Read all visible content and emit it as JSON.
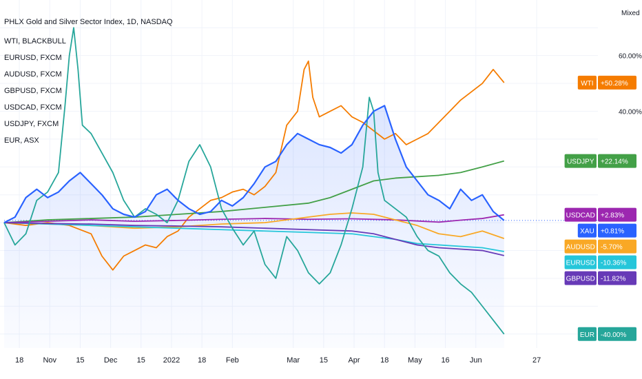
{
  "chart_data": {
    "type": "line",
    "title": "PHLX Gold and Silver Sector Index, 1D, NASDAQ",
    "legend_entries": [
      "WTI, BLACKBULL",
      "EURUSD, FXCM",
      "AUDUSD, FXCM",
      "GBPUSD, FXCM",
      "USDCAD, FXCM",
      "USDJPY, FXCM",
      "EUR, ASX"
    ],
    "scale_mode": "Mixed",
    "y_tick_labels": [
      {
        "value": 60,
        "label": "60.00%"
      },
      {
        "value": 40,
        "label": "40.00%"
      }
    ],
    "ylim": [
      -45,
      75
    ],
    "xlim": [
      0,
      270
    ],
    "x_tick_labels": [
      {
        "x": 7,
        "label": "18"
      },
      {
        "x": 21,
        "label": "Nov"
      },
      {
        "x": 35,
        "label": "15"
      },
      {
        "x": 49,
        "label": "Dec"
      },
      {
        "x": 63,
        "label": "15"
      },
      {
        "x": 77,
        "label": "2022"
      },
      {
        "x": 91,
        "label": "18"
      },
      {
        "x": 105,
        "label": "Feb"
      },
      {
        "x": 133,
        "label": "Mar"
      },
      {
        "x": 147,
        "label": "15"
      },
      {
        "x": 161,
        "label": "Apr"
      },
      {
        "x": 175,
        "label": "18"
      },
      {
        "x": 189,
        "label": "May"
      },
      {
        "x": 203,
        "label": "16"
      },
      {
        "x": 217,
        "label": "Jun"
      },
      {
        "x": 245,
        "label": "27"
      }
    ],
    "series": [
      {
        "name": "XAU",
        "main": true,
        "color": "#2962ff",
        "last": "+0.81%",
        "points": [
          [
            0,
            0
          ],
          [
            5,
            2
          ],
          [
            10,
            9
          ],
          [
            15,
            12
          ],
          [
            20,
            9
          ],
          [
            25,
            11
          ],
          [
            30,
            15
          ],
          [
            35,
            18
          ],
          [
            40,
            14
          ],
          [
            45,
            10
          ],
          [
            50,
            5
          ],
          [
            55,
            3
          ],
          [
            60,
            2
          ],
          [
            65,
            4
          ],
          [
            70,
            10
          ],
          [
            75,
            12
          ],
          [
            80,
            8
          ],
          [
            85,
            5
          ],
          [
            90,
            3
          ],
          [
            95,
            4
          ],
          [
            100,
            8
          ],
          [
            105,
            6
          ],
          [
            110,
            9
          ],
          [
            115,
            14
          ],
          [
            120,
            20
          ],
          [
            125,
            22
          ],
          [
            130,
            28
          ],
          [
            135,
            32
          ],
          [
            140,
            30
          ],
          [
            145,
            28
          ],
          [
            150,
            27
          ],
          [
            155,
            25
          ],
          [
            160,
            28
          ],
          [
            165,
            35
          ],
          [
            170,
            40
          ],
          [
            175,
            42
          ],
          [
            180,
            30
          ],
          [
            185,
            20
          ],
          [
            190,
            15
          ],
          [
            195,
            10
          ],
          [
            200,
            8
          ],
          [
            205,
            5
          ],
          [
            210,
            12
          ],
          [
            215,
            8
          ],
          [
            220,
            10
          ],
          [
            225,
            4
          ],
          [
            230,
            0.8
          ]
        ]
      },
      {
        "name": "WTI",
        "color": "#f57c00",
        "last": "+50.28%",
        "points": [
          [
            0,
            0
          ],
          [
            10,
            -1
          ],
          [
            20,
            0
          ],
          [
            30,
            -1
          ],
          [
            40,
            -4
          ],
          [
            45,
            -12
          ],
          [
            50,
            -17
          ],
          [
            55,
            -12
          ],
          [
            60,
            -10
          ],
          [
            65,
            -8
          ],
          [
            70,
            -9
          ],
          [
            75,
            -5
          ],
          [
            80,
            -3
          ],
          [
            85,
            2
          ],
          [
            90,
            5
          ],
          [
            95,
            8
          ],
          [
            100,
            9
          ],
          [
            105,
            11
          ],
          [
            110,
            12
          ],
          [
            115,
            10
          ],
          [
            120,
            13
          ],
          [
            125,
            18
          ],
          [
            130,
            35
          ],
          [
            135,
            40
          ],
          [
            138,
            55
          ],
          [
            140,
            58
          ],
          [
            142,
            45
          ],
          [
            145,
            38
          ],
          [
            150,
            40
          ],
          [
            155,
            42
          ],
          [
            160,
            38
          ],
          [
            165,
            36
          ],
          [
            170,
            33
          ],
          [
            175,
            30
          ],
          [
            180,
            32
          ],
          [
            185,
            28
          ],
          [
            190,
            30
          ],
          [
            195,
            32
          ],
          [
            200,
            36
          ],
          [
            205,
            40
          ],
          [
            210,
            44
          ],
          [
            215,
            47
          ],
          [
            220,
            50
          ],
          [
            225,
            55
          ],
          [
            230,
            50.28
          ]
        ]
      },
      {
        "name": "USDJPY",
        "color": "#43a047",
        "last": "+22.14%",
        "points": [
          [
            0,
            0
          ],
          [
            20,
            1
          ],
          [
            40,
            1.5
          ],
          [
            60,
            2
          ],
          [
            80,
            3
          ],
          [
            100,
            4
          ],
          [
            120,
            5.5
          ],
          [
            140,
            7
          ],
          [
            150,
            9
          ],
          [
            160,
            12
          ],
          [
            170,
            15
          ],
          [
            180,
            16
          ],
          [
            190,
            16.5
          ],
          [
            200,
            17
          ],
          [
            210,
            18
          ],
          [
            220,
            20
          ],
          [
            230,
            22.14
          ]
        ]
      },
      {
        "name": "USDCAD",
        "color": "#9c27b0",
        "last": "+2.83%",
        "points": [
          [
            0,
            0
          ],
          [
            20,
            0.5
          ],
          [
            40,
            1
          ],
          [
            60,
            0.5
          ],
          [
            80,
            0.8
          ],
          [
            100,
            1.2
          ],
          [
            120,
            1.5
          ],
          [
            140,
            1.2
          ],
          [
            160,
            1.4
          ],
          [
            180,
            1.0
          ],
          [
            190,
            0.6
          ],
          [
            200,
            0.2
          ],
          [
            210,
            0.9
          ],
          [
            220,
            1.5
          ],
          [
            230,
            2.83
          ]
        ]
      },
      {
        "name": "AUDUSD",
        "color": "#f9a825",
        "last": "-5.70%",
        "points": [
          [
            0,
            0
          ],
          [
            20,
            -0.5
          ],
          [
            40,
            -1
          ],
          [
            60,
            -2
          ],
          [
            80,
            -1.5
          ],
          [
            100,
            -0.5
          ],
          [
            120,
            0
          ],
          [
            140,
            2
          ],
          [
            150,
            3
          ],
          [
            160,
            3.5
          ],
          [
            170,
            3
          ],
          [
            180,
            1
          ],
          [
            190,
            -1
          ],
          [
            200,
            -4
          ],
          [
            210,
            -5
          ],
          [
            220,
            -3
          ],
          [
            230,
            -5.7
          ]
        ]
      },
      {
        "name": "EURUSD",
        "color": "#26c6da",
        "last": "-10.36%",
        "points": [
          [
            0,
            0
          ],
          [
            20,
            -0.5
          ],
          [
            40,
            -1
          ],
          [
            60,
            -1.5
          ],
          [
            80,
            -2
          ],
          [
            100,
            -2.5
          ],
          [
            120,
            -3
          ],
          [
            140,
            -3.5
          ],
          [
            160,
            -4
          ],
          [
            170,
            -5
          ],
          [
            180,
            -6
          ],
          [
            190,
            -7.5
          ],
          [
            200,
            -8
          ],
          [
            210,
            -8.5
          ],
          [
            220,
            -9
          ],
          [
            230,
            -10.36
          ]
        ]
      },
      {
        "name": "GBPUSD",
        "color": "#673ab7",
        "last": "-11.82%",
        "points": [
          [
            0,
            0
          ],
          [
            20,
            -0.3
          ],
          [
            40,
            -0.5
          ],
          [
            60,
            -1
          ],
          [
            80,
            -1.2
          ],
          [
            100,
            -1.5
          ],
          [
            120,
            -2
          ],
          [
            140,
            -2.5
          ],
          [
            160,
            -3
          ],
          [
            170,
            -4
          ],
          [
            180,
            -6
          ],
          [
            190,
            -8
          ],
          [
            200,
            -9
          ],
          [
            210,
            -9.5
          ],
          [
            220,
            -10
          ],
          [
            230,
            -11.82
          ]
        ]
      },
      {
        "name": "EUR",
        "color": "#26a69a",
        "last": "-40.00%",
        "points": [
          [
            0,
            0
          ],
          [
            5,
            -8
          ],
          [
            10,
            -4
          ],
          [
            15,
            8
          ],
          [
            20,
            11
          ],
          [
            25,
            18
          ],
          [
            28,
            42
          ],
          [
            30,
            60
          ],
          [
            32,
            70
          ],
          [
            34,
            55
          ],
          [
            36,
            35
          ],
          [
            40,
            32
          ],
          [
            45,
            25
          ],
          [
            50,
            18
          ],
          [
            55,
            8
          ],
          [
            60,
            2
          ],
          [
            65,
            5
          ],
          [
            70,
            3
          ],
          [
            75,
            0
          ],
          [
            80,
            8
          ],
          [
            85,
            22
          ],
          [
            90,
            28
          ],
          [
            95,
            20
          ],
          [
            100,
            5
          ],
          [
            105,
            -2
          ],
          [
            110,
            -8
          ],
          [
            115,
            -3
          ],
          [
            120,
            -15
          ],
          [
            125,
            -20
          ],
          [
            130,
            -5
          ],
          [
            135,
            -10
          ],
          [
            140,
            -18
          ],
          [
            145,
            -22
          ],
          [
            150,
            -18
          ],
          [
            155,
            -8
          ],
          [
            160,
            5
          ],
          [
            165,
            20
          ],
          [
            168,
            45
          ],
          [
            170,
            40
          ],
          [
            172,
            18
          ],
          [
            175,
            8
          ],
          [
            180,
            5
          ],
          [
            185,
            2
          ],
          [
            190,
            -5
          ],
          [
            195,
            -10
          ],
          [
            200,
            -12
          ],
          [
            205,
            -18
          ],
          [
            210,
            -22
          ],
          [
            215,
            -25
          ],
          [
            220,
            -30
          ],
          [
            225,
            -35
          ],
          [
            230,
            -40
          ]
        ]
      }
    ]
  }
}
